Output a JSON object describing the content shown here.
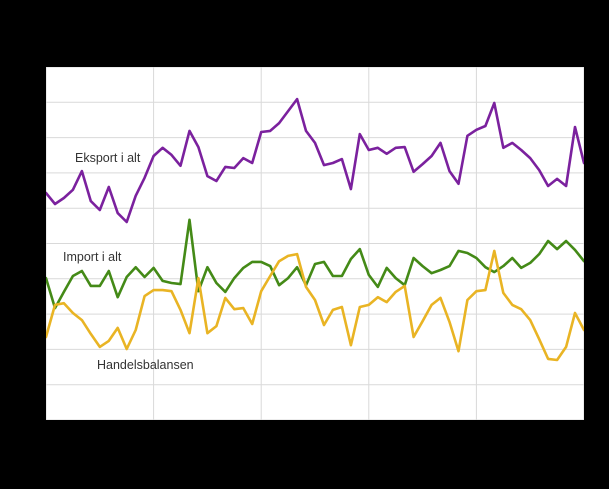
{
  "theme": {
    "background": "#000000",
    "plot_background": "#ffffff",
    "gridline_color": "#d9d9d9",
    "label_color": "#333333"
  },
  "chart_data": {
    "type": "line",
    "title": "",
    "xlabel": "",
    "ylabel": "",
    "x_axis": {
      "tick_labels_visible": false,
      "gridline_intervals": 5
    },
    "y_axis": {
      "tick_labels_visible": false,
      "min": 0,
      "max": 10,
      "gridline_interval": 1,
      "unit": "gridline intervals (axis labels not visible in image)"
    },
    "grid": true,
    "legend": "inline-labels",
    "series": [
      {
        "name": "Eksport i alt",
        "color": "#7b219e",
        "values": [
          6.43,
          6.12,
          6.29,
          6.52,
          7.05,
          6.2,
          5.95,
          6.6,
          5.86,
          5.61,
          6.35,
          6.86,
          7.48,
          7.71,
          7.51,
          7.2,
          8.19,
          7.73,
          6.91,
          6.77,
          7.17,
          7.14,
          7.42,
          7.28,
          8.16,
          8.19,
          8.41,
          8.75,
          9.09,
          8.19,
          7.85,
          7.22,
          7.28,
          7.39,
          6.54,
          8.1,
          7.65,
          7.71,
          7.54,
          7.71,
          7.73,
          7.03,
          7.25,
          7.48,
          7.85,
          7.05,
          6.69,
          8.05,
          8.22,
          8.33,
          8.98,
          7.71,
          7.85,
          7.65,
          7.42,
          7.08,
          6.63,
          6.83,
          6.63,
          8.3,
          7.28
        ]
      },
      {
        "name": "Import i alt",
        "color": "#448a17",
        "values": [
          4.02,
          3.17,
          3.63,
          4.08,
          4.22,
          3.8,
          3.8,
          4.22,
          3.48,
          4.05,
          4.33,
          4.05,
          4.31,
          3.94,
          3.88,
          3.85,
          5.67,
          3.65,
          4.33,
          3.88,
          3.63,
          4.02,
          4.31,
          4.48,
          4.48,
          4.36,
          3.82,
          4.02,
          4.33,
          3.82,
          4.42,
          4.48,
          4.08,
          4.08,
          4.56,
          4.84,
          4.11,
          3.77,
          4.31,
          4.02,
          3.82,
          4.59,
          4.36,
          4.16,
          4.25,
          4.36,
          4.79,
          4.73,
          4.59,
          4.33,
          4.19,
          4.36,
          4.59,
          4.31,
          4.45,
          4.7,
          5.07,
          4.84,
          5.07,
          4.82,
          4.5
        ]
      },
      {
        "name": "Handelsbalansen",
        "color": "#e9b424",
        "values": [
          2.35,
          3.26,
          3.31,
          3.03,
          2.83,
          2.44,
          2.07,
          2.24,
          2.61,
          2.01,
          2.55,
          3.51,
          3.68,
          3.68,
          3.65,
          3.12,
          2.46,
          4.02,
          2.46,
          2.66,
          3.46,
          3.14,
          3.17,
          2.72,
          3.65,
          4.08,
          4.5,
          4.65,
          4.7,
          3.77,
          3.4,
          2.69,
          3.12,
          3.2,
          2.12,
          3.2,
          3.26,
          3.48,
          3.34,
          3.63,
          3.8,
          2.35,
          2.8,
          3.26,
          3.46,
          2.78,
          1.95,
          3.4,
          3.65,
          3.68,
          4.79,
          3.6,
          3.26,
          3.14,
          2.83,
          2.29,
          1.73,
          1.7,
          2.07,
          3.03,
          2.55
        ]
      }
    ]
  }
}
